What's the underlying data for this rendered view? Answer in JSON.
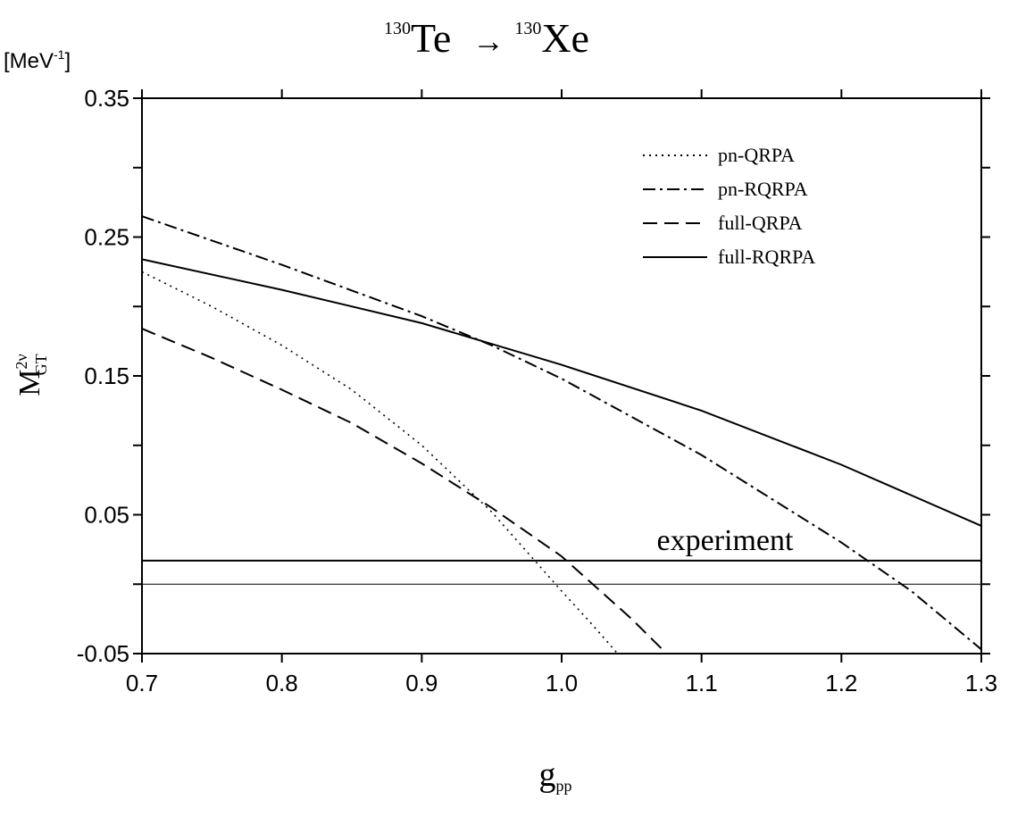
{
  "chart_data": {
    "type": "line",
    "title": {
      "from_mass": "130",
      "from_symbol": "Te",
      "arrow": "→",
      "to_mass": "130",
      "to_symbol": "Xe"
    },
    "unit_label": {
      "prefix": "[MeV",
      "exponent": "-1",
      "suffix": "]"
    },
    "ylabel": {
      "main": "M",
      "sup": "2ν",
      "sub": "GT"
    },
    "xlabel": {
      "main": "g",
      "sub": "pp"
    },
    "xlim": [
      0.7,
      1.3
    ],
    "ylim": [
      -0.05,
      0.35
    ],
    "x_ticks": [
      "0.7",
      "0.8",
      "0.9",
      "1.0",
      "1.1",
      "1.2",
      "1.3"
    ],
    "y_ticks": [
      "0.35",
      "0.25",
      "0.15",
      "0.05",
      "-0.05"
    ],
    "grid": false,
    "legend_position": "top-right",
    "series": [
      {
        "name": "pn-QRPA",
        "style": "dotted",
        "x": [
          0.7,
          0.75,
          0.8,
          0.85,
          0.9,
          0.95,
          1.0,
          1.02,
          1.04
        ],
        "y": [
          0.225,
          0.2,
          0.172,
          0.14,
          0.1,
          0.052,
          -0.005,
          -0.027,
          -0.05
        ]
      },
      {
        "name": "pn-RQRPA",
        "style": "dashdot",
        "x": [
          0.7,
          0.8,
          0.9,
          0.95,
          1.0,
          1.1,
          1.2,
          1.25,
          1.3
        ],
        "y": [
          0.265,
          0.23,
          0.193,
          0.172,
          0.148,
          0.093,
          0.03,
          -0.005,
          -0.047
        ]
      },
      {
        "name": "full-QRPA",
        "style": "dashed",
        "x": [
          0.7,
          0.75,
          0.8,
          0.85,
          0.9,
          0.95,
          1.0,
          1.05,
          1.075
        ],
        "y": [
          0.184,
          0.163,
          0.14,
          0.116,
          0.087,
          0.055,
          0.02,
          -0.025,
          -0.05
        ]
      },
      {
        "name": "full-RQRPA",
        "style": "solid",
        "x": [
          0.7,
          0.8,
          0.9,
          0.95,
          1.0,
          1.1,
          1.2,
          1.3
        ],
        "y": [
          0.234,
          0.212,
          0.188,
          0.173,
          0.158,
          0.125,
          0.086,
          0.042
        ]
      }
    ],
    "reference_lines": [
      {
        "name": "experiment",
        "y": 0.017,
        "label": "experiment"
      },
      {
        "name": "zero",
        "y": 0.0,
        "label": ""
      }
    ]
  }
}
